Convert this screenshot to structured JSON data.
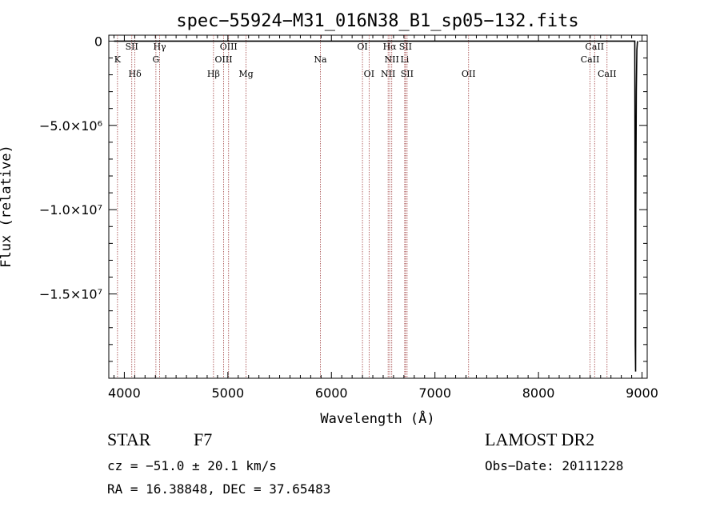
{
  "chart_data": {
    "type": "line",
    "title": "spec−55924−M31_016N38_B1_sp05−132.fits",
    "xlabel": "Wavelength (Å)",
    "ylabel": "Flux (relative)",
    "xlim": [
      3850,
      9050
    ],
    "ylim": [
      -20000000,
      350000
    ],
    "x_ticks": [
      4000,
      5000,
      6000,
      7000,
      8000,
      9000
    ],
    "x_tick_labels": [
      "4000",
      "5000",
      "6000",
      "7000",
      "8000",
      "9000"
    ],
    "y_ticks": [
      0,
      -5000000,
      -10000000,
      -15000000
    ],
    "y_tick_labels": [
      "0",
      "−5.0×10⁶",
      "−1.0×10⁷",
      "−1.5×10⁷"
    ],
    "grid": false,
    "legend": "none",
    "series": [
      {
        "x": [
          3900,
          8930,
          8935,
          8938,
          8940,
          8942,
          8945,
          8948,
          8950,
          8955,
          8960
        ],
        "y": [
          0,
          0,
          -18000000,
          -19600000,
          -10000000,
          -7000000,
          -3000000,
          -1500000,
          -500000,
          -100000,
          0
        ]
      }
    ],
    "lines": [
      {
        "label": "K",
        "x": 3934,
        "row": 1
      },
      {
        "label": "SII",
        "x": 4072,
        "row": 0
      },
      {
        "label": "Hδ",
        "x": 4102,
        "row": 2
      },
      {
        "label": "Hγ",
        "x": 4341,
        "row": 0
      },
      {
        "label": "G",
        "x": 4305,
        "row": 1
      },
      {
        "label": "Hβ",
        "x": 4861,
        "row": 2
      },
      {
        "label": "OIII",
        "x": 5007,
        "row": 0
      },
      {
        "label": "OIII",
        "x": 4959,
        "row": 1
      },
      {
        "label": "Mg",
        "x": 5175,
        "row": 2
      },
      {
        "label": "Na",
        "x": 5893,
        "row": 1
      },
      {
        "label": "OI",
        "x": 6300,
        "row": 0
      },
      {
        "label": "OI",
        "x": 6364,
        "row": 2
      },
      {
        "label": "Hα",
        "x": 6563,
        "row": 0
      },
      {
        "label": "SII",
        "x": 6716,
        "row": 0
      },
      {
        "label": "NII",
        "x": 6583,
        "row": 1
      },
      {
        "label": "Li",
        "x": 6708,
        "row": 1
      },
      {
        "label": "NII",
        "x": 6548,
        "row": 2
      },
      {
        "label": "SII",
        "x": 6731,
        "row": 2
      },
      {
        "label": "OII",
        "x": 7325,
        "row": 2
      },
      {
        "label": "CaII",
        "x": 8542,
        "row": 0
      },
      {
        "label": "CaII",
        "x": 8498,
        "row": 1
      },
      {
        "label": "CaII",
        "x": 8662,
        "row": 2
      }
    ]
  },
  "footer": {
    "class_label": "STAR",
    "subclass": "F7",
    "survey": "LAMOST DR2",
    "cz": "cz = −51.0 ± 20.1 km/s",
    "obs_date": "Obs−Date: 20111228",
    "coords": "RA =  16.38848, DEC =  37.65483"
  }
}
